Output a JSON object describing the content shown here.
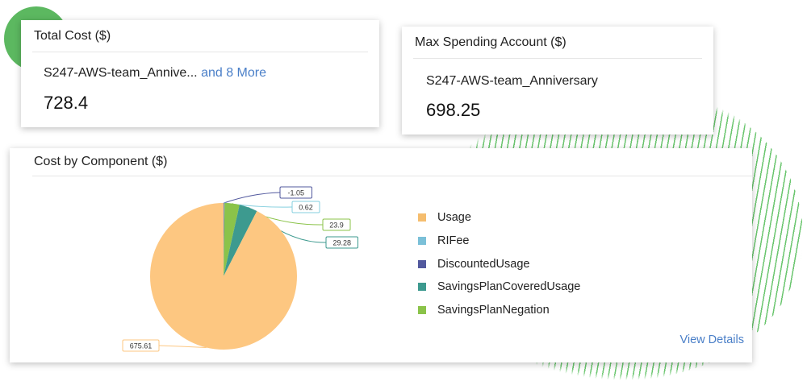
{
  "total_cost": {
    "title": "Total Cost ($)",
    "account": "S247-AWS-team_Annive...",
    "more_link": "and 8 More",
    "value": "728.4"
  },
  "max_spending": {
    "title": "Max Spending Account ($)",
    "account": "S247-AWS-team_Anniversary",
    "value": "698.25"
  },
  "cost_by_component": {
    "title": "Cost by Component ($)",
    "view_details": "View Details"
  },
  "chart_data": {
    "type": "pie",
    "title": "Cost by Component ($)",
    "legend_placement": "right",
    "slices": [
      {
        "name": "DiscountedUsage",
        "value": -1.05,
        "label": "-1.05",
        "color": "#52599e"
      },
      {
        "name": "RIFee",
        "value": 0.62,
        "label": "0.62",
        "color": "#84cfdf"
      },
      {
        "name": "SavingsPlanNegation",
        "value": 23.9,
        "label": "23.9",
        "color": "#8bc34a"
      },
      {
        "name": "SavingsPlanCoveredUsage",
        "value": 29.28,
        "label": "29.28",
        "color": "#3d9a8f"
      },
      {
        "name": "Usage",
        "value": 675.61,
        "label": "675.61",
        "color": "#fdc781"
      }
    ],
    "legend": [
      {
        "name": "Usage",
        "color": "#f5bd6e"
      },
      {
        "name": "RIFee",
        "color": "#7bc0d8"
      },
      {
        "name": "DiscountedUsage",
        "color": "#52599e"
      },
      {
        "name": "SavingsPlanCoveredUsage",
        "color": "#3d9a8f"
      },
      {
        "name": "SavingsPlanNegation",
        "color": "#8bc34a"
      }
    ]
  }
}
